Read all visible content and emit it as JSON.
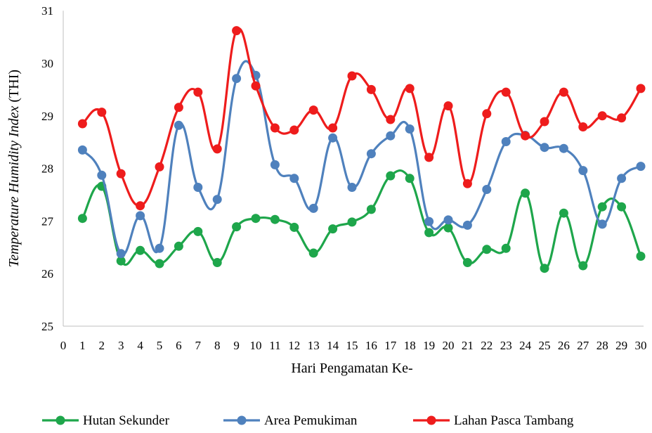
{
  "chart_data": {
    "type": "line",
    "xlabel": "Hari Pengamatan Ke-",
    "ylabel_parts": [
      {
        "text": "Temperature Humidity Index",
        "italic": true
      },
      {
        "text": " (THI)",
        "italic": false
      }
    ],
    "ylim": [
      25,
      31
    ],
    "yticks": [
      25,
      26,
      27,
      28,
      29,
      30,
      31
    ],
    "xlim": [
      0,
      30
    ],
    "xticks": [
      0,
      1,
      2,
      3,
      4,
      5,
      6,
      7,
      8,
      9,
      10,
      11,
      12,
      13,
      14,
      15,
      16,
      17,
      18,
      19,
      20,
      21,
      22,
      23,
      24,
      25,
      26,
      27,
      28,
      29,
      30
    ],
    "grid": false,
    "legend_position": "bottom",
    "x": [
      1,
      2,
      3,
      4,
      5,
      6,
      7,
      8,
      9,
      10,
      11,
      12,
      13,
      14,
      15,
      16,
      17,
      18,
      19,
      20,
      21,
      22,
      23,
      24,
      25,
      26,
      27,
      28,
      29,
      30
    ],
    "series": [
      {
        "name": "Hutan Sekunder",
        "color": "#1ea64b",
        "values": [
          27.05,
          27.66,
          26.24,
          26.44,
          26.19,
          26.52,
          26.8,
          26.21,
          26.89,
          27.05,
          27.03,
          26.88,
          26.39,
          26.85,
          26.98,
          27.22,
          27.86,
          27.81,
          26.78,
          26.87,
          26.21,
          26.46,
          26.48,
          27.53,
          26.1,
          27.15,
          26.15,
          27.27,
          27.27,
          26.33
        ]
      },
      {
        "name": "Area Pemukiman",
        "color": "#4f81bd",
        "values": [
          28.35,
          27.87,
          26.38,
          27.1,
          26.48,
          28.82,
          27.64,
          27.41,
          29.71,
          29.77,
          28.07,
          27.81,
          27.24,
          28.58,
          27.64,
          28.28,
          28.62,
          28.75,
          26.99,
          27.02,
          26.92,
          27.6,
          28.51,
          28.63,
          28.4,
          28.38,
          27.96,
          26.94,
          27.81,
          28.04
        ]
      },
      {
        "name": "Lahan Pasca Tambang",
        "color": "#ee1c1c",
        "values": [
          28.85,
          29.07,
          27.9,
          27.29,
          28.03,
          29.16,
          29.45,
          28.37,
          30.62,
          29.57,
          28.77,
          28.73,
          29.11,
          28.77,
          29.76,
          29.5,
          28.93,
          29.52,
          28.21,
          29.19,
          27.71,
          29.04,
          29.45,
          28.62,
          28.89,
          29.45,
          28.79,
          29.0,
          28.96,
          29.52
        ]
      }
    ]
  }
}
